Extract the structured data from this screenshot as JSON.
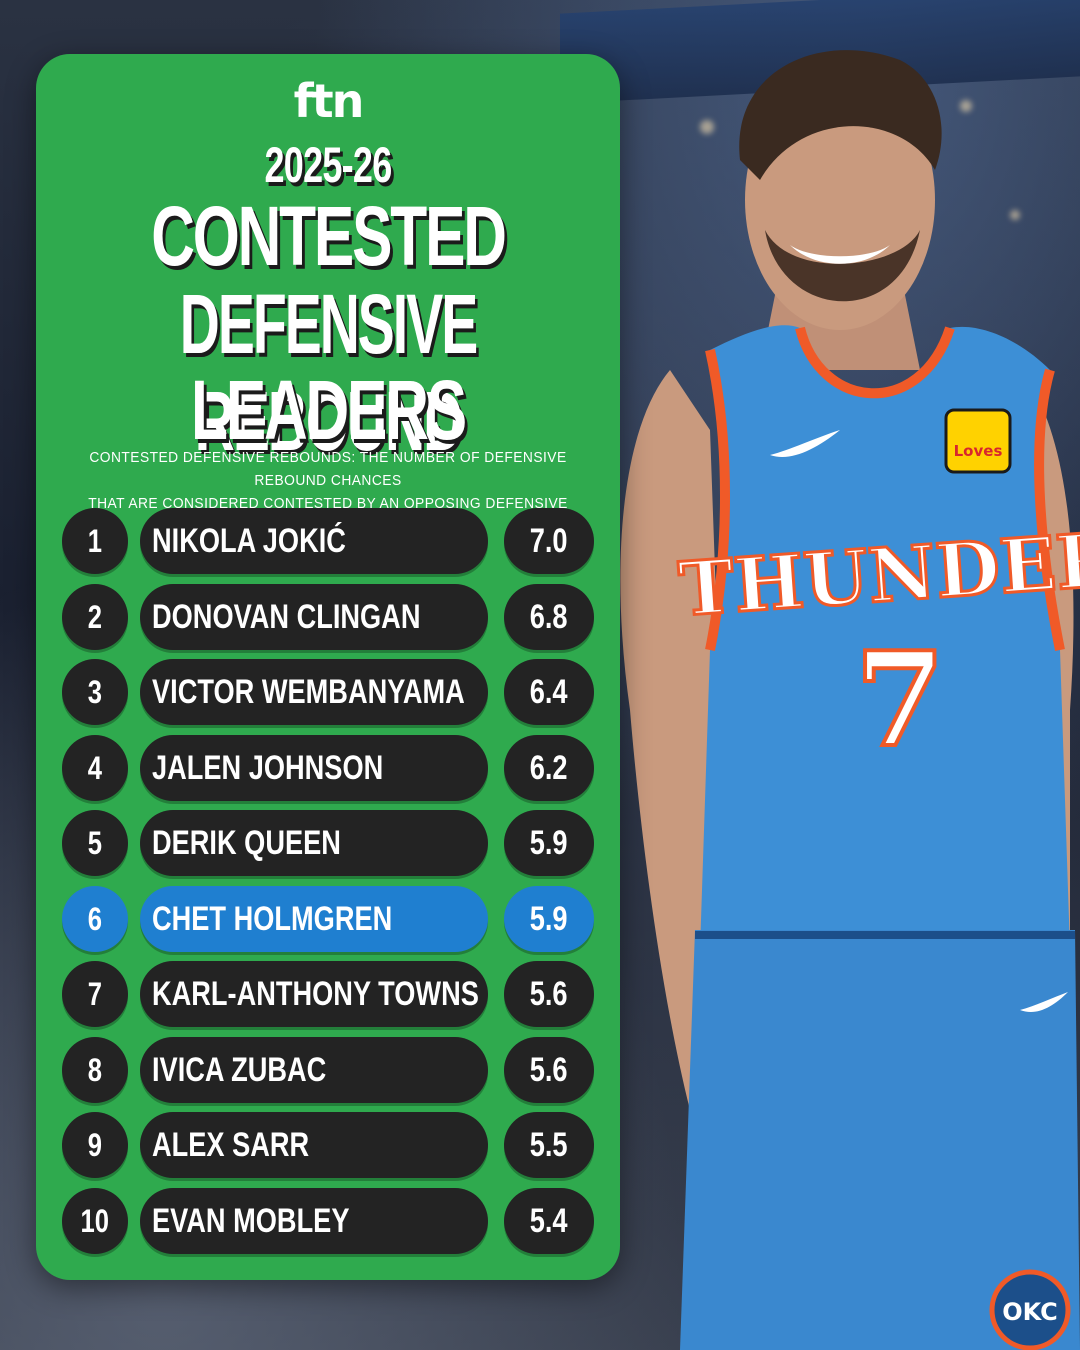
{
  "brand": {
    "logo_text": "ftn"
  },
  "header": {
    "season": "2025-26",
    "title_lines": [
      "CONTESTED",
      "DEFENSIVE REBOUND",
      "LEADERS"
    ],
    "definition_lines": [
      "CONTESTED DEFENSIVE REBOUNDS: THE NUMBER OF DEFENSIVE REBOUND CHANCES",
      "THAT ARE CONSIDERED CONTESTED BY AN OPPOSING DEFENSIVE PLAYER"
    ]
  },
  "leaders": [
    {
      "rank": "1",
      "name": "NIKOLA JOKIĆ",
      "value": "7.0",
      "highlight": false
    },
    {
      "rank": "2",
      "name": "DONOVAN CLINGAN",
      "value": "6.8",
      "highlight": false
    },
    {
      "rank": "3",
      "name": "VICTOR WEMBANYAMA",
      "value": "6.4",
      "highlight": false
    },
    {
      "rank": "4",
      "name": "JALEN JOHNSON",
      "value": "6.2",
      "highlight": false
    },
    {
      "rank": "5",
      "name": "DERIK QUEEN",
      "value": "5.9",
      "highlight": false
    },
    {
      "rank": "6",
      "name": "CHET HOLMGREN",
      "value": "5.9",
      "highlight": true
    },
    {
      "rank": "7",
      "name": "KARL-ANTHONY TOWNS",
      "value": "5.6",
      "highlight": false
    },
    {
      "rank": "8",
      "name": "IVICA ZUBAC",
      "value": "5.6",
      "highlight": false
    },
    {
      "rank": "9",
      "name": "ALEX SARR",
      "value": "5.5",
      "highlight": false
    },
    {
      "rank": "10",
      "name": "EVAN MOBLEY",
      "value": "5.4",
      "highlight": false
    }
  ],
  "player_photo": {
    "jersey_text": "THUNDER",
    "jersey_number": "7",
    "patch_text": "Loves",
    "shorts_logo_text": "OKC"
  },
  "colors": {
    "panel_green": "#2faa4e",
    "row_dark": "#232323",
    "highlight_blue": "#1f7fd0",
    "jersey_blue": "#3d8fd6",
    "jersey_orange": "#f05a28"
  }
}
